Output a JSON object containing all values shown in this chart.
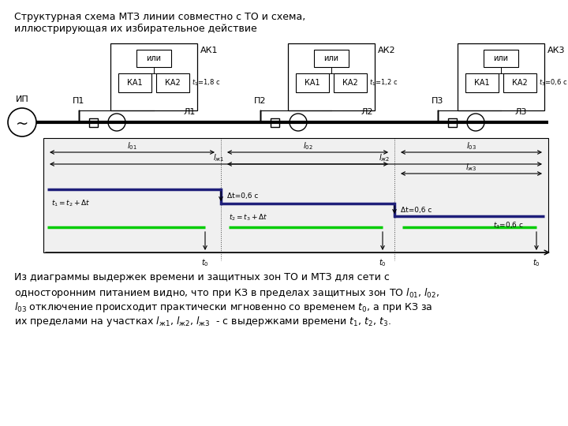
{
  "title_line1": "Структурная схема МТЗ линии совместно с ТО и схема,",
  "title_line2": "иллюстрирующая их избирательное действие",
  "bg_color": "#ffffff",
  "text_color": "#000000",
  "dark_blue": "#1f1f7a",
  "green": "#00cc00",
  "bottom_text_lines": [
    "Из диаграммы выдержек времени и защитных зон ТО и МТЗ для сети с",
    "односторонним питанием видно, что при КЗ в пределах защитных зон ТО $l_{01}$, $l_{02}$,",
    "$l_{03}$ отключение происходит практически мгновенно со временем $t_0$, а при КЗ за",
    "их пределами на участках $l_{\\text{ж}1}$, $l_{\\text{ж}2}$, $l_{\\text{ж}3}$  - с выдержками времени $t_1$, $t_2$, $t_3$."
  ]
}
